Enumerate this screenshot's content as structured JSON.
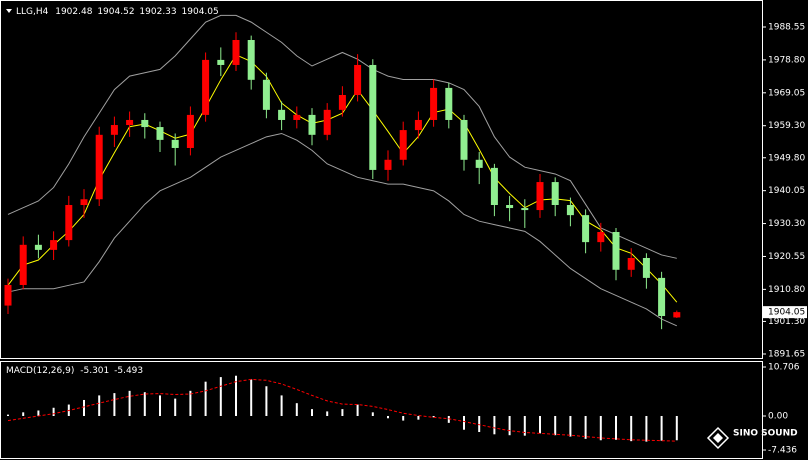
{
  "watermark": "SINO SOUND",
  "chart_data": [
    {
      "type": "candlestick",
      "symbol": "LLG,H4",
      "up_color": "#ff0000",
      "down_color": "#90ee90",
      "open": [
        1906.0,
        1912.1,
        1924.0,
        1922.5,
        1925.4,
        1935.8,
        1937.5,
        1956.6,
        1959.5,
        1961.0,
        1958.9,
        1955.1,
        1952.7,
        1962.5,
        1978.8,
        1977.3,
        1984.7,
        1972.9,
        1964.0,
        1961.0,
        1962.5,
        1956.6,
        1964.0,
        1968.4,
        1977.3,
        1946.2,
        1949.2,
        1958.0,
        1961.0,
        1970.5,
        1961.0,
        1949.2,
        1946.8,
        1935.8,
        1934.9,
        1934.3,
        1942.6,
        1935.8,
        1932.8,
        1924.8,
        1927.8,
        1916.6,
        1920.1,
        1914.2,
        1902.48
      ],
      "high": [
        1914.0,
        1926.5,
        1927.0,
        1928.0,
        1938.5,
        1940.5,
        1959.0,
        1962.0,
        1963.5,
        1963.0,
        1960.5,
        1957.0,
        1965.0,
        1981.0,
        1982.5,
        1987.0,
        1986.0,
        1975.0,
        1966.5,
        1965.0,
        1964.5,
        1966.0,
        1971.0,
        1980.5,
        1979.0,
        1952.0,
        1960.5,
        1963.5,
        1973.0,
        1972.0,
        1962.5,
        1951.5,
        1948.0,
        1938.5,
        1937.5,
        1945.0,
        1944.0,
        1938.0,
        1934.5,
        1930.5,
        1929.0,
        1923.0,
        1921.5,
        1916.0,
        1904.52
      ],
      "low": [
        1903.5,
        1910.8,
        1920.0,
        1919.5,
        1923.5,
        1932.0,
        1935.5,
        1953.0,
        1956.0,
        1955.5,
        1951.5,
        1947.5,
        1950.5,
        1960.5,
        1974.0,
        1975.5,
        1970.0,
        1961.5,
        1958.0,
        1958.5,
        1953.5,
        1955.0,
        1962.0,
        1966.5,
        1943.5,
        1943.0,
        1947.5,
        1955.5,
        1959.0,
        1958.5,
        1946.0,
        1942.0,
        1932.5,
        1931.0,
        1929.0,
        1932.0,
        1932.5,
        1929.5,
        1921.5,
        1922.0,
        1913.5,
        1914.5,
        1911.0,
        1899.0,
        1902.33
      ],
      "close": [
        1912.1,
        1924.0,
        1922.5,
        1925.4,
        1935.8,
        1937.5,
        1956.6,
        1959.5,
        1961.0,
        1958.9,
        1955.1,
        1952.7,
        1962.5,
        1978.8,
        1977.3,
        1984.7,
        1972.9,
        1964.0,
        1961.0,
        1962.5,
        1956.6,
        1964.0,
        1968.4,
        1977.3,
        1946.2,
        1949.2,
        1958.0,
        1961.0,
        1970.5,
        1961.0,
        1949.2,
        1946.8,
        1935.8,
        1934.9,
        1934.3,
        1942.6,
        1935.8,
        1932.8,
        1924.8,
        1927.8,
        1916.6,
        1920.1,
        1914.2,
        1902.9,
        1904.05
      ],
      "overlays": [
        {
          "color": "#a0a0a0",
          "values": [
            1933,
            1935,
            1937,
            1941,
            1948,
            1956,
            1963,
            1970,
            1974,
            1975,
            1976,
            1980,
            1985,
            1990,
            1992,
            1992,
            1990,
            1987,
            1984,
            1980,
            1977,
            1979,
            1981,
            1979,
            1976,
            1974,
            1973,
            1973,
            1973,
            1972,
            1970,
            1965,
            1956,
            1950,
            1947,
            1946,
            1945,
            1943,
            1936,
            1929,
            1927,
            1925,
            1923,
            1921,
            1920
          ]
        },
        {
          "color": "#a0a0a0",
          "values": [
            1910,
            1911,
            1911,
            1911,
            1912,
            1913,
            1919,
            1926,
            1931,
            1936,
            1940,
            1942,
            1944,
            1947,
            1950,
            1952,
            1954,
            1956,
            1957,
            1955,
            1952,
            1948,
            1946,
            1944,
            1943,
            1942,
            1942,
            1941,
            1940,
            1937,
            1933,
            1931,
            1930,
            1929,
            1928,
            1925,
            1921,
            1917,
            1914,
            1911,
            1909,
            1907,
            1905,
            1902,
            1900
          ]
        },
        {
          "color": "#ffff00",
          "values": [
            1912.0,
            1918.0,
            1919.5,
            1924.0,
            1928.0,
            1933.0,
            1943.3,
            1951.3,
            1959.0,
            1959.8,
            1957.8,
            1955.6,
            1956.8,
            1964.7,
            1972.9,
            1980.3,
            1978.3,
            1973.9,
            1966.0,
            1962.5,
            1960.0,
            1961.0,
            1963.0,
            1969.9,
            1963.9,
            1957.6,
            1951.1,
            1956.1,
            1963.2,
            1964.2,
            1960.2,
            1952.3,
            1943.9,
            1939.2,
            1935.0,
            1937.3,
            1937.6,
            1937.1,
            1931.1,
            1928.5,
            1923.1,
            1921.5,
            1917.0,
            1912.4,
            1907.0
          ]
        }
      ],
      "ylim": [
        1890.46,
        1995.96
      ],
      "yticks": [
        1988.55,
        {
          "value": 1978.8,
          "label": "1978.80"
        },
        1969.05,
        {
          "value": 1959.3,
          "label": "1959.30"
        },
        {
          "value": 1949.8,
          "label": "1949.80"
        },
        1940.05,
        {
          "value": 1930.3,
          "label": "1930.30"
        },
        1920.55,
        {
          "value": 1910.8,
          "label": "1910.80"
        },
        {
          "value": 1901.3,
          "label": "1901.30"
        },
        1891.65
      ]
    },
    {
      "type": "macd",
      "title": "MACD(12,26,9)",
      "histogram": {
        "color": "#ffffff",
        "values": [
          0.3,
          0.8,
          1.2,
          1.8,
          2.5,
          3.5,
          4.5,
          5.0,
          5.5,
          5.2,
          4.5,
          3.8,
          5.5,
          7.5,
          8.5,
          8.8,
          8.0,
          6.5,
          4.5,
          2.8,
          1.5,
          1.0,
          1.5,
          2.5,
          0.8,
          -0.5,
          -1.0,
          -0.8,
          -0.3,
          -1.5,
          -3.0,
          -3.5,
          -4.0,
          -4.2,
          -4.3,
          -3.8,
          -4.2,
          -4.5,
          -5.0,
          -5.3,
          -5.2,
          -5.5,
          -5.6,
          -5.4,
          -5.301
        ]
      },
      "signal": {
        "color": "#ff0000",
        "values": [
          -1.0,
          -0.5,
          0.0,
          0.5,
          1.2,
          2.0,
          2.8,
          3.6,
          4.3,
          4.8,
          4.9,
          4.7,
          4.8,
          5.5,
          6.5,
          7.5,
          8.0,
          7.8,
          7.0,
          5.8,
          4.5,
          3.3,
          2.6,
          2.5,
          2.1,
          1.4,
          0.6,
          0.1,
          -0.3,
          -0.6,
          -1.2,
          -1.9,
          -2.6,
          -3.2,
          -3.6,
          -3.8,
          -4.0,
          -4.2,
          -4.5,
          -4.8,
          -5.0,
          -5.2,
          -5.3,
          -5.4,
          -5.493
        ]
      },
      "ylim": [
        -9.18,
        11.8
      ],
      "yticks": [
        10.706,
        {
          "value": 0,
          "label": "0.00"
        },
        -7.436
      ]
    }
  ]
}
